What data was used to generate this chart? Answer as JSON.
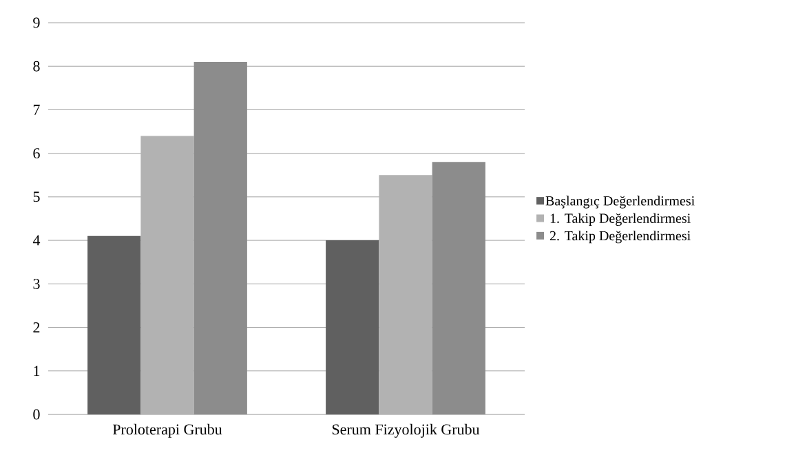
{
  "chart_data": {
    "type": "bar",
    "categories": [
      "Proloterapi Grubu",
      "Serum Fizyolojik Grubu"
    ],
    "series": [
      {
        "name": "Başlangıç Değerlendirmesi",
        "color": "#606060",
        "values": [
          4.1,
          4.0
        ]
      },
      {
        "name": "1. Takip Değerlendirmesi",
        "color": "#b2b2b2",
        "values": [
          6.4,
          5.5
        ]
      },
      {
        "name": "2. Takip Değerlendirmesi",
        "color": "#8c8c8c",
        "values": [
          8.1,
          5.8
        ]
      }
    ],
    "ylim": [
      0,
      9
    ],
    "yticks": [
      0,
      1,
      2,
      3,
      4,
      5,
      6,
      7,
      8,
      9
    ],
    "grid": "y",
    "legend": "right"
  }
}
